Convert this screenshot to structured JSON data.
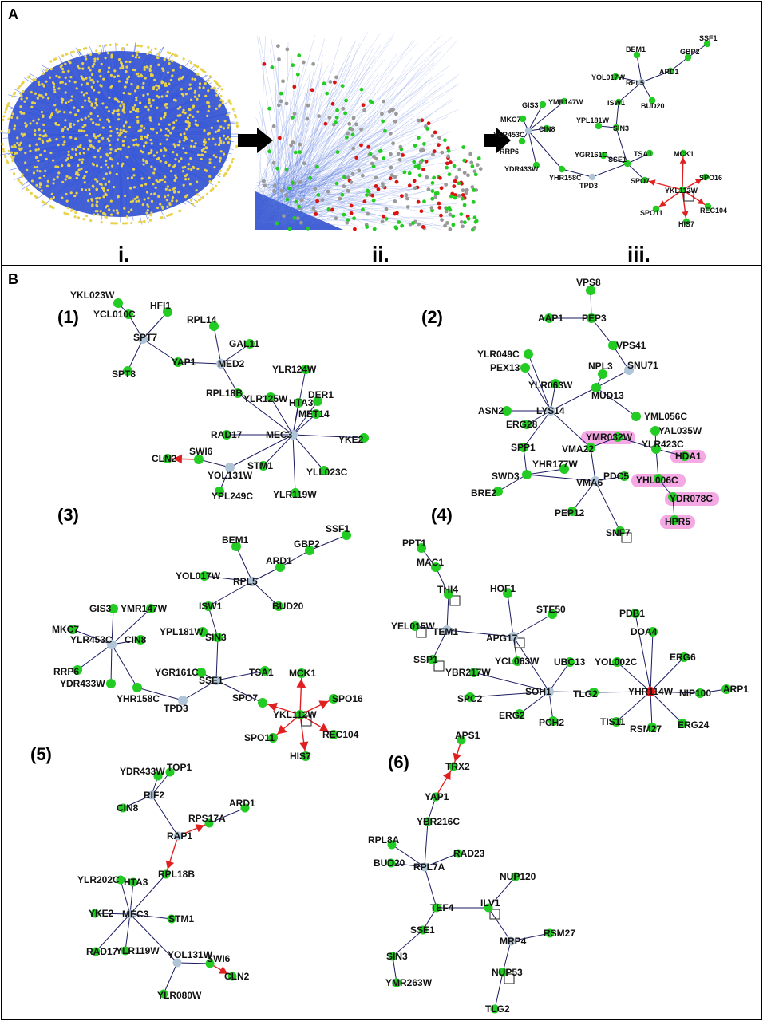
{
  "panels": {
    "a": "A",
    "b": "B"
  },
  "top_captions": {
    "i": "i.",
    "ii": "ii.",
    "iii": "iii."
  },
  "subnetwork_labels": [
    "(1)",
    "(2)",
    "(3)",
    "(4)",
    "(5)",
    "(6)"
  ],
  "colors": {
    "green": "#22cc22",
    "grey": "#b0c4d8",
    "red": "#dd1111",
    "edge": "#1a1a60",
    "red_edge": "#e02020",
    "highlight": "#f4a8e4",
    "hairball_blue": "#2244cc",
    "hairball_yellow": "#e8d24a"
  },
  "network_iii": {
    "nodes": [
      "SSF1",
      "BEM1",
      "GBP2",
      "ARD1",
      "YOL017W",
      "RPL5",
      "ISW1",
      "BUD20",
      "GIS3",
      "YMR147W",
      "MKC7",
      "CIN8",
      "YLR453C",
      "YPL181W",
      "SIN3",
      "RRP6",
      "YGR161C",
      "TSA1",
      "SSE1",
      "MCK1",
      "YDR433W",
      "YHR158C",
      "TPD3",
      "SPO7",
      "SPO16",
      "YKL112W",
      "SPO11",
      "REC104",
      "HIS7"
    ]
  },
  "net1": {
    "nodes": [
      "YKL023W",
      "YCL010C",
      "HFI1",
      "SPT7",
      "RPL14",
      "SPT8",
      "YAP1",
      "GAL11",
      "MED2",
      "YLR124W",
      "RPL18B",
      "YLR125W",
      "HTA3",
      "DER1",
      "MET14",
      "RAD17",
      "MEC3",
      "YKE2",
      "CLN2",
      "SWI6",
      "YOL131W",
      "STM1",
      "YLL023C",
      "YPL249C",
      "YLR119W"
    ]
  },
  "net2": {
    "nodes": [
      "VPS8",
      "AAP1",
      "PEP3",
      "VPS41",
      "SNU71",
      "YLR049C",
      "PEX13",
      "NPL3",
      "YLR063W",
      "MUD13",
      "ASN2",
      "LYS14",
      "YML056C",
      "ERG28",
      "YMR032W",
      "YAL035W",
      "VMA22",
      "YLR423C",
      "HDA1",
      "SPP1",
      "SWD3",
      "YHR177W",
      "PDC5",
      "YHL006C",
      "BRE2",
      "VMA6",
      "YDR078C",
      "PEP12",
      "SNF7",
      "HPR5"
    ]
  },
  "net4": {
    "nodes": [
      "PPT1",
      "MAC1",
      "THI4",
      "HOF1",
      "STE50",
      "YEL015W",
      "TEM1",
      "APG17",
      "SSP1",
      "YCL063W",
      "UBC13",
      "YBR217W",
      "SOH1",
      "TLG2",
      "SPC2",
      "ERG2",
      "PCH2",
      "PDB1",
      "DOA4",
      "YOL002C",
      "ERG6",
      "YHR114W",
      "NIP100",
      "ARP1",
      "TIS11",
      "RSM27",
      "ERG24"
    ]
  },
  "net5": {
    "nodes": [
      "YDR433W",
      "TOP1",
      "RIF2",
      "CIN8",
      "ARD1",
      "RPS17A",
      "RAP1",
      "RPL18B",
      "YLR202C",
      "HTA3",
      "YKE2",
      "MEC3",
      "STM1",
      "RAD17",
      "YLR119W",
      "YOL131W",
      "SWI6",
      "CLN2",
      "YLR080W"
    ]
  },
  "net6": {
    "nodes": [
      "APS1",
      "TRX2",
      "YAP1",
      "YBR216C",
      "RPL8A",
      "RAD23",
      "BUD20",
      "RPL7A",
      "NUP120",
      "TEF4",
      "ILV1",
      "SSE1",
      "RSM27",
      "MRP4",
      "SIN3",
      "NUP53",
      "YMR263W",
      "TLG2"
    ]
  }
}
